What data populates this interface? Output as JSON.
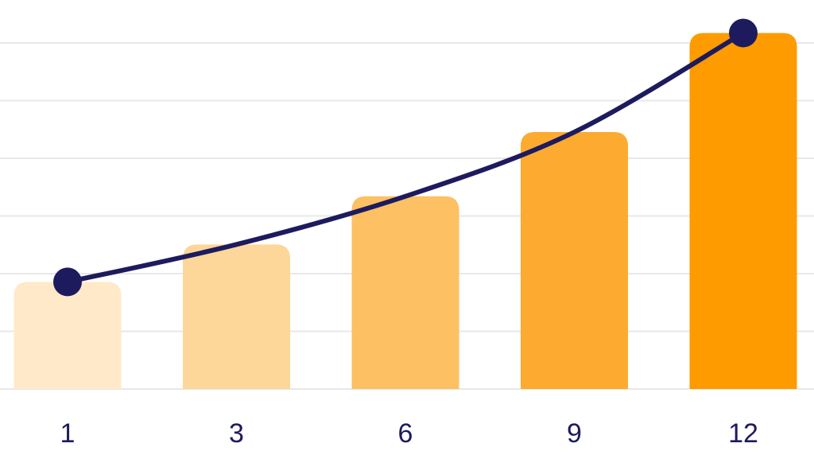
{
  "chart_data": {
    "type": "bar",
    "categories": [
      "1",
      "3",
      "6",
      "9",
      "12"
    ],
    "values": [
      20,
      27,
      36,
      48,
      66.5
    ],
    "ylim": [
      0,
      70
    ],
    "grid": true,
    "bar_colors": [
      "#ffe9c8",
      "#fdd699",
      "#fdc063",
      "#fdaa31",
      "#fd9b00"
    ],
    "trend_line": {
      "color": "#1d1b5e",
      "endpoint_markers": true
    },
    "colors": {
      "gridline": "#e8e8e8",
      "tick_label": "#1d1b5e",
      "background": "#ffffff"
    }
  }
}
